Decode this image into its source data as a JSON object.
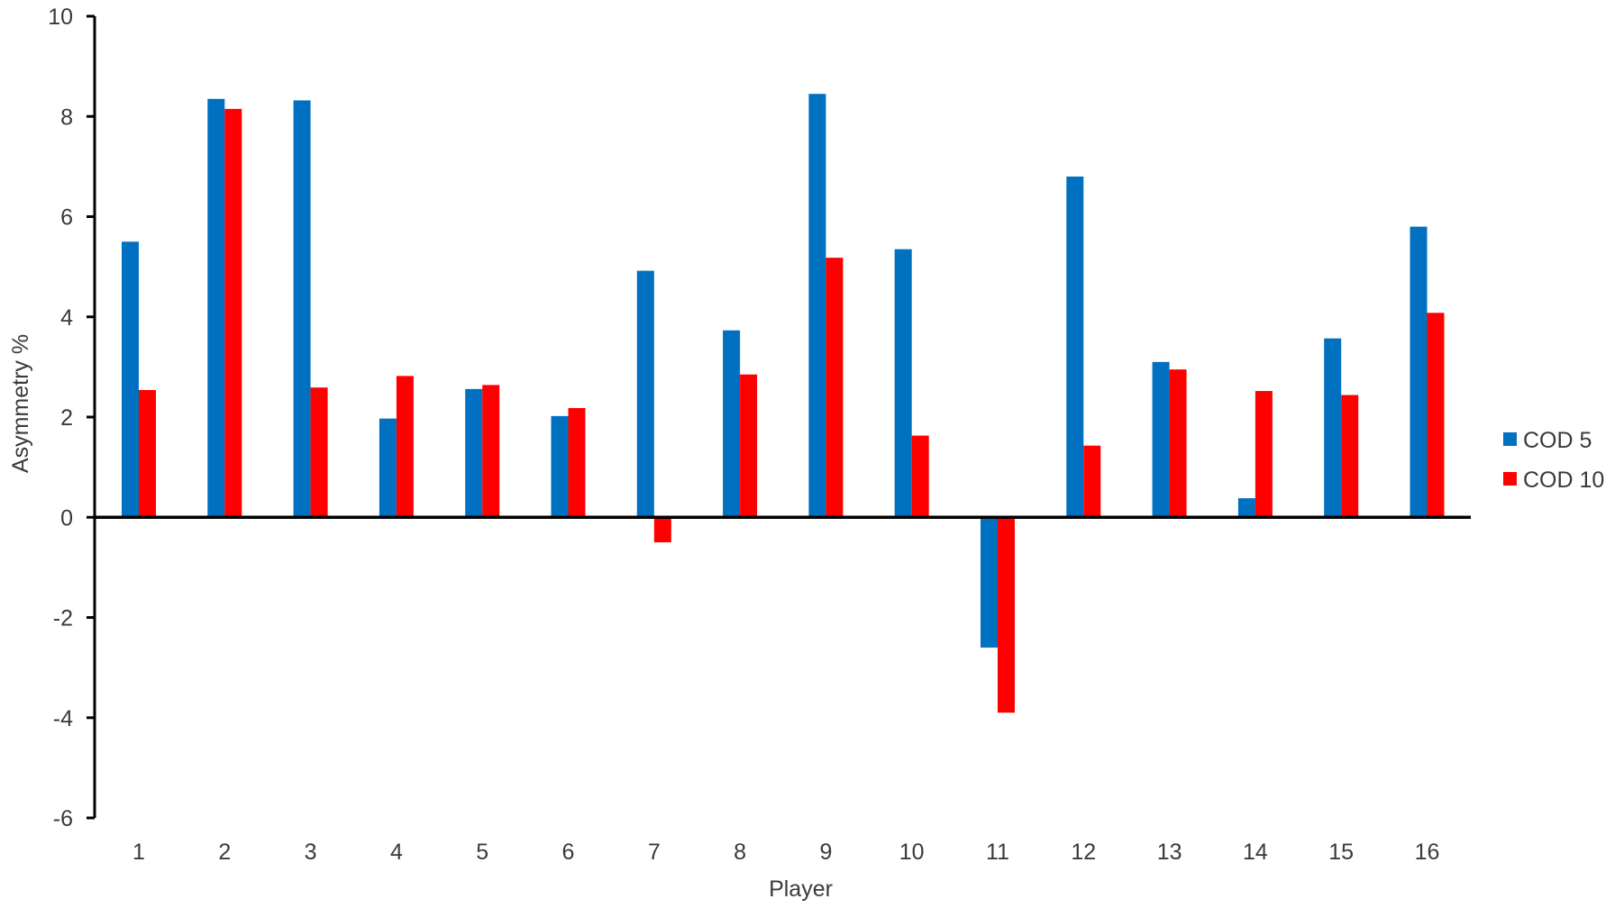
{
  "chart_data": {
    "type": "bar",
    "title": "",
    "xlabel": "Player",
    "ylabel": "Asymmetry  %",
    "ylim": [
      -6,
      10
    ],
    "yticks": [
      10,
      8,
      6,
      4,
      2,
      0,
      -2,
      -4,
      -6
    ],
    "categories": [
      "1",
      "2",
      "3",
      "4",
      "5",
      "6",
      "7",
      "8",
      "9",
      "10",
      "11",
      "12",
      "13",
      "14",
      "15",
      "16"
    ],
    "series": [
      {
        "name": "COD 5",
        "color": "#0070c0",
        "values": [
          5.5,
          8.35,
          8.32,
          1.97,
          2.56,
          2.02,
          4.92,
          3.73,
          8.45,
          5.35,
          -2.6,
          6.8,
          3.1,
          0.38,
          3.57,
          5.8
        ]
      },
      {
        "name": "COD 10",
        "color": "#ff0000",
        "values": [
          2.54,
          8.15,
          2.59,
          2.82,
          2.64,
          2.18,
          -0.5,
          2.85,
          5.18,
          1.63,
          -3.9,
          1.43,
          2.95,
          2.52,
          2.44,
          4.08
        ]
      }
    ],
    "grid": false,
    "legend": "right"
  }
}
